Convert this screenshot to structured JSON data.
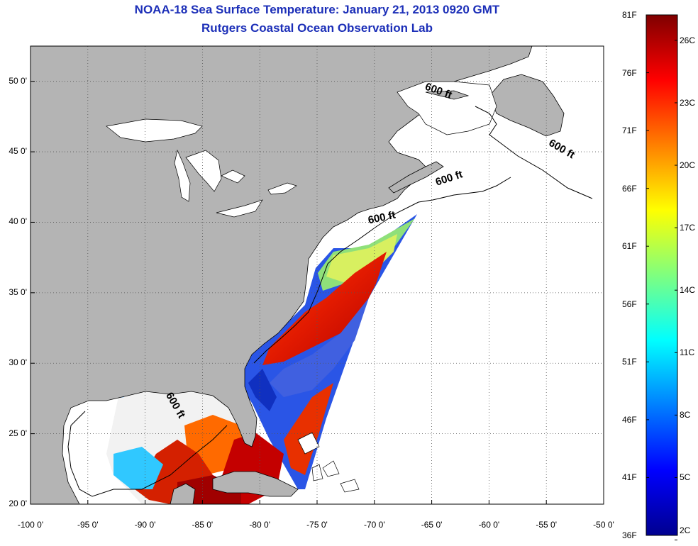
{
  "title_line1": "NOAA-18 Sea Surface Temperature:  January 21, 2013 0920 GMT",
  "title_line2": "Rutgers Coastal Ocean Observation Lab",
  "map": {
    "lon_range": [
      -100,
      -50
    ],
    "lat_range": [
      20,
      52.5
    ],
    "lon_ticks": [
      {
        "value": -100,
        "label": "-100 0'"
      },
      {
        "value": -95,
        "label": "-95 0'"
      },
      {
        "value": -90,
        "label": "-90 0'"
      },
      {
        "value": -85,
        "label": "-85 0'"
      },
      {
        "value": -80,
        "label": "-80 0'"
      },
      {
        "value": -75,
        "label": "-75 0'"
      },
      {
        "value": -70,
        "label": "-70 0'"
      },
      {
        "value": -65,
        "label": "-65 0'"
      },
      {
        "value": -60,
        "label": "-60 0'"
      },
      {
        "value": -55,
        "label": "-55 0'"
      },
      {
        "value": -50,
        "label": "-50 0'"
      }
    ],
    "lat_ticks": [
      {
        "value": 50,
        "label": "50 0'"
      },
      {
        "value": 45,
        "label": "45 0'"
      },
      {
        "value": 40,
        "label": "40 0'"
      },
      {
        "value": 35,
        "label": "35 0'"
      },
      {
        "value": 30,
        "label": "30 0'"
      },
      {
        "value": 25,
        "label": "25 0'"
      },
      {
        "value": 20,
        "label": "20 0'"
      }
    ],
    "isobath_labels": [
      {
        "text": "600 ft",
        "lon": -64.5,
        "lat": 49.1,
        "angle": 20
      },
      {
        "text": "600 ft",
        "lon": -53.8,
        "lat": 45.0,
        "angle": 30
      },
      {
        "text": "600 ft",
        "lon": -63.4,
        "lat": 42.9,
        "angle": -18
      },
      {
        "text": "600 ft",
        "lon": -69.3,
        "lat": 40.1,
        "angle": -12
      },
      {
        "text": "600 ft",
        "lon": -87.6,
        "lat": 26.9,
        "angle": 60
      }
    ],
    "colors": {
      "land": "#b4b4b4",
      "grid": "#555555"
    }
  },
  "colorbar": {
    "f_labels": [
      "81F",
      "76F",
      "71F",
      "66F",
      "61F",
      "56F",
      "51F",
      "46F",
      "41F",
      "36F"
    ],
    "c_labels": [
      "26C",
      "23C",
      "20C",
      "17C",
      "14C",
      "11C",
      "8C",
      "5C",
      "2C"
    ],
    "min_f": 36,
    "max_f": 81,
    "colormap": "jet"
  }
}
